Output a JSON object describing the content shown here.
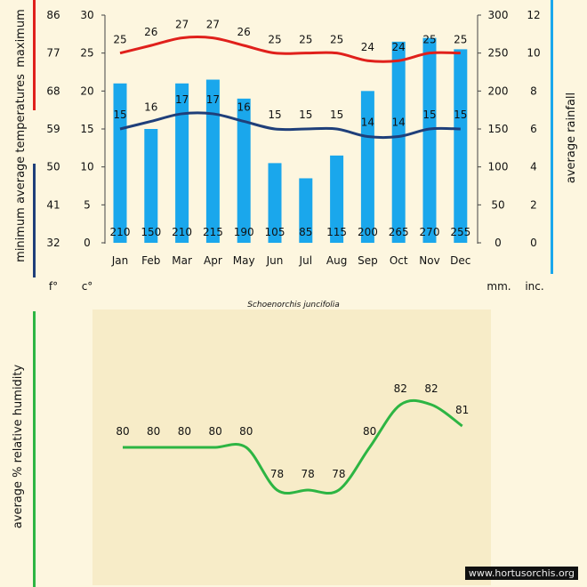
{
  "species": "Schoenorchis  juncifolia",
  "credit": "www.hortusorchis.org",
  "chart_data": [
    {
      "type": "bar+line",
      "categories": [
        "Jan",
        "Feb",
        "Mar",
        "Apr",
        "May",
        "Jun",
        "Jul",
        "Aug",
        "Sep",
        "Oct",
        "Nov",
        "Dec"
      ],
      "rainfall": {
        "label": "average  rainfall",
        "unit_labels": [
          "mm.",
          "inc."
        ],
        "values": [
          210,
          150,
          210,
          215,
          190,
          105,
          85,
          115,
          200,
          265,
          270,
          255
        ],
        "mm_range": [
          0,
          300
        ],
        "mm_ticks": [
          0,
          50,
          100,
          150,
          200,
          250,
          300
        ],
        "inch_ticks": [
          0,
          2,
          4,
          6,
          8,
          10,
          12
        ],
        "color": "#1aa7ec"
      },
      "temperature": {
        "label_left": "average  temperatures",
        "label_max": "maximum",
        "label_min": "minimum",
        "unit_labels": [
          "f°",
          "c°"
        ],
        "c_range": [
          0,
          30
        ],
        "c_ticks": [
          0,
          5,
          10,
          15,
          20,
          25,
          30
        ],
        "f_ticks": [
          32,
          41,
          50,
          59,
          68,
          77,
          86
        ],
        "max": [
          25,
          26,
          27,
          27,
          26,
          25,
          25,
          25,
          24,
          24,
          25,
          25
        ],
        "min": [
          15,
          16,
          17,
          17,
          16,
          15,
          15,
          15,
          14,
          14,
          15,
          15
        ],
        "max_color": "#e0201b",
        "min_color": "#1f3f7a"
      }
    },
    {
      "type": "line",
      "label": "average %  relative humidity",
      "values": [
        80,
        80,
        80,
        80,
        80,
        78,
        78,
        78,
        80,
        82,
        82,
        81
      ],
      "color": "#2db543"
    }
  ]
}
